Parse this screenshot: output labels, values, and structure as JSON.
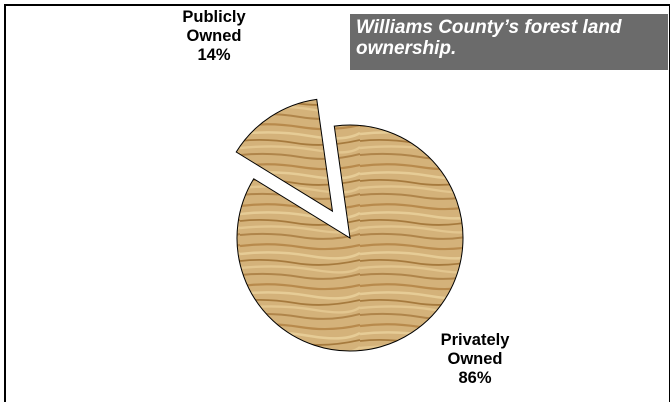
{
  "chart_data": {
    "type": "pie",
    "title": "Williams County’s forest land ownership.",
    "slices": [
      {
        "label_lines": [
          "Publicly",
          "Owned",
          "14%"
        ],
        "value": 14,
        "exploded": true
      },
      {
        "label_lines": [
          "Privately",
          "Owned",
          "86%"
        ],
        "value": 86,
        "exploded": false
      }
    ],
    "colors": {
      "wood_light": "#d9bd86",
      "wood_mid": "#c49a5a",
      "wood_dark": "#9c6f35",
      "edge": "#000000"
    }
  }
}
